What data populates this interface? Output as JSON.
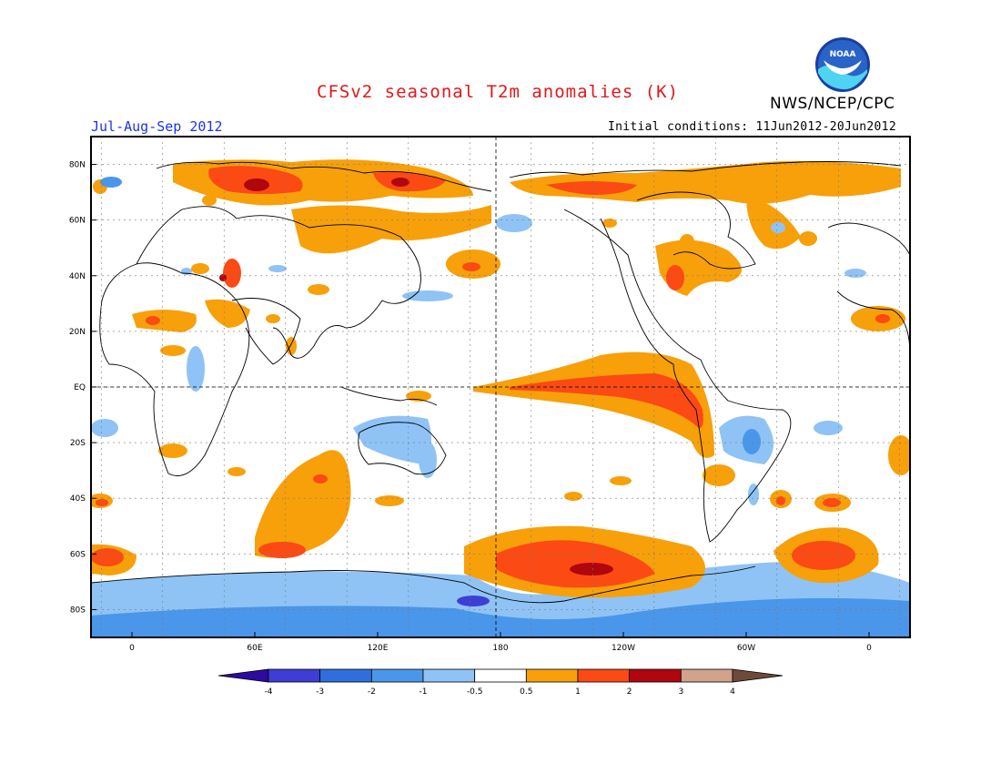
{
  "header": {
    "title": "CFSv2 seasonal T2m anomalies (K)",
    "agency": "NWS/NCEP/CPC",
    "season": "Jul-Aug-Sep 2012",
    "initial_conditions": "Initial conditions: 11Jun2012-20Jun2012",
    "logo_text": "NOAA"
  },
  "map": {
    "lat_labels": [
      "80N",
      "60N",
      "40N",
      "20N",
      "EQ",
      "20S",
      "40S",
      "60S",
      "80S"
    ],
    "lat_values": [
      80,
      60,
      40,
      20,
      0,
      -20,
      -40,
      -60,
      -80
    ],
    "lon_labels": [
      "0",
      "60E",
      "120E",
      "180",
      "120W",
      "60W",
      "0"
    ],
    "lon_values": [
      0,
      60,
      120,
      180,
      240,
      300,
      360
    ],
    "lon_range": [
      -20,
      380
    ],
    "lat_range": [
      -90,
      90
    ]
  },
  "colorbar": {
    "labels": [
      "-4",
      "-3",
      "-2",
      "-1",
      "-0.5",
      "0.5",
      "1",
      "2",
      "3",
      "4"
    ],
    "colors": [
      "#2d0aa0",
      "#3e3ed4",
      "#2f6fdc",
      "#4a96ea",
      "#8fc3f5",
      "#ffffff",
      "#f7a00a",
      "#fb4a14",
      "#b0060e",
      "#d1a28c",
      "#6e4a3a"
    ]
  },
  "colors": {
    "title": "#e0181a",
    "season": "#1a34e6",
    "warm1": "#f7a00a",
    "warm2": "#fb4a14",
    "warm3": "#b0060e",
    "cool1": "#8fc3f5",
    "cool2": "#4a96ea",
    "cool3": "#2f6fdc"
  }
}
